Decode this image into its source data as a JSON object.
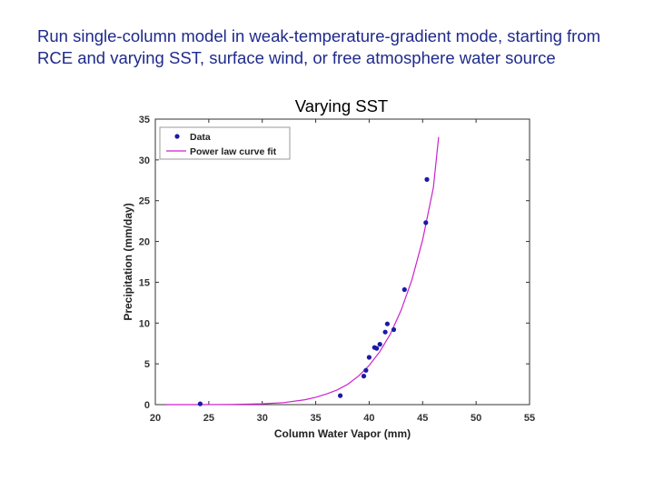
{
  "slide": {
    "text": "Run single-column model in weak-temperature-gradient mode, starting from RCE and varying SST, surface wind, or free atmosphere water source"
  },
  "chart_data": {
    "type": "scatter",
    "title": "Varying SST",
    "xlabel": "Column Water Vapor (mm)",
    "ylabel": "Precipitation (mm/day)",
    "xlim": [
      20,
      55
    ],
    "ylim": [
      0,
      35
    ],
    "xticks": [
      20,
      25,
      30,
      35,
      40,
      45,
      50,
      55
    ],
    "yticks": [
      0,
      5,
      10,
      15,
      20,
      25,
      30,
      35
    ],
    "grid": false,
    "legend_position": "top-left",
    "series": [
      {
        "name": "Data",
        "kind": "points",
        "color": "#1a1aa8",
        "x": [
          24.2,
          37.3,
          39.5,
          39.7,
          40.0,
          40.5,
          40.7,
          41.0,
          41.5,
          41.7,
          42.3,
          43.3,
          45.3,
          45.4
        ],
        "y": [
          0.1,
          1.1,
          3.5,
          4.2,
          5.8,
          7.0,
          6.9,
          7.4,
          8.9,
          9.9,
          9.2,
          14.1,
          22.3,
          27.6
        ]
      },
      {
        "name": "Power law curve fit",
        "kind": "line",
        "color": "#cc22cc",
        "x": [
          21,
          24,
          27,
          30,
          32,
          34,
          35,
          36,
          37,
          38,
          39,
          40,
          41,
          42,
          43,
          44,
          45,
          46,
          46.5
        ],
        "y": [
          0.0,
          0.0,
          0.02,
          0.1,
          0.25,
          0.6,
          0.9,
          1.3,
          1.8,
          2.5,
          3.5,
          4.8,
          6.5,
          8.7,
          11.6,
          15.3,
          20.2,
          26.6,
          32.8
        ]
      }
    ]
  }
}
